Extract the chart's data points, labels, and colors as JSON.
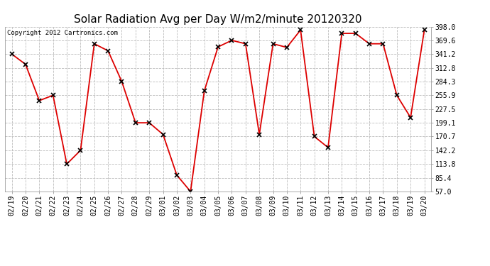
{
  "title": "Solar Radiation Avg per Day W/m2/minute 20120320",
  "copyright": "Copyright 2012 Cartronics.com",
  "labels": [
    "02/19",
    "02/20",
    "02/21",
    "02/22",
    "02/23",
    "02/24",
    "02/25",
    "02/26",
    "02/27",
    "02/28",
    "02/29",
    "03/01",
    "03/02",
    "03/03",
    "03/04",
    "03/05",
    "03/06",
    "03/07",
    "03/08",
    "03/09",
    "03/10",
    "03/11",
    "03/12",
    "03/13",
    "03/14",
    "03/15",
    "03/16",
    "03/17",
    "03/18",
    "03/19",
    "03/20"
  ],
  "values": [
    341.2,
    320.0,
    245.0,
    255.9,
    113.8,
    142.2,
    362.5,
    348.0,
    284.3,
    199.1,
    199.1,
    175.0,
    91.0,
    57.0,
    265.0,
    356.0,
    369.6,
    362.5,
    175.0,
    362.5,
    355.0,
    391.0,
    170.7,
    148.0,
    384.0,
    384.0,
    362.5,
    362.5,
    255.9,
    210.0,
    391.0
  ],
  "ylim_min": 57.0,
  "ylim_max": 398.0,
  "yticks": [
    57.0,
    85.4,
    113.8,
    142.2,
    170.7,
    199.1,
    227.5,
    255.9,
    284.3,
    312.8,
    341.2,
    369.6,
    398.0
  ],
  "line_color": "#dd0000",
  "marker": "x",
  "bg_color": "#ffffff",
  "grid_color": "#bbbbbb",
  "title_fontsize": 11,
  "copyright_fontsize": 6.5,
  "tick_fontsize": 7
}
